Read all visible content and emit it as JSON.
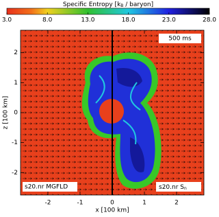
{
  "chart_data": {
    "type": "heatmap",
    "title": [
      "Specific Entropy [k",
      "B",
      " / baryon]"
    ],
    "colorbar": {
      "lim": [
        3,
        28
      ],
      "ticks": [
        {
          "value": 3,
          "label": "3.0"
        },
        {
          "value": 8,
          "label": "8.0"
        },
        {
          "value": 13,
          "label": "13.0"
        },
        {
          "value": 18,
          "label": "18.0"
        },
        {
          "value": 23,
          "label": "23.0"
        },
        {
          "value": 28,
          "label": "28.0"
        }
      ]
    },
    "x_label": "x [100 km]",
    "y_label": "z [100 km]",
    "xlim": [
      -2.85,
      2.85
    ],
    "xticks": [
      -2,
      -1,
      0,
      1,
      2
    ],
    "ylim": [
      -2.75,
      2.75
    ],
    "yticks": [
      -2,
      -1,
      0,
      1,
      2
    ],
    "annotations": {
      "time": "500 ms",
      "left_model": "s20.nr MGFLD",
      "right_model": [
        "s20.nr S",
        "n"
      ]
    }
  }
}
